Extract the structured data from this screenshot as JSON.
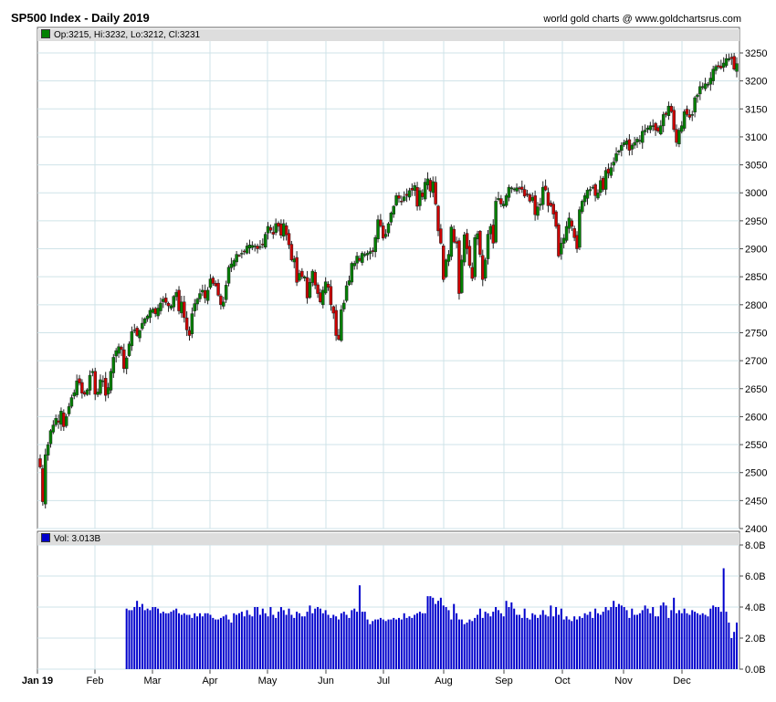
{
  "header": {
    "title": "SP500 Index - Daily 2019",
    "source": "world gold charts @ www.goldchartsrus.com"
  },
  "price_legend": {
    "text": "Op:3215, Hi:3232, Lo:3212, Cl:3231",
    "color": "#008000"
  },
  "volume_legend": {
    "text": "Vol: 3.013B",
    "color": "#0000cc"
  },
  "colors": {
    "up": "#008000",
    "down": "#cc0000",
    "volume": "#0000cc",
    "grid": "#cfe3e8",
    "panel_bg": "#ffffff"
  },
  "chart_data": [
    {
      "type": "candlestick",
      "title": "SP500 Index - Daily 2019",
      "y_ticks": [
        "2400",
        "2450",
        "2500",
        "2550",
        "2600",
        "2650",
        "2700",
        "2750",
        "2800",
        "2850",
        "2900",
        "2950",
        "3000",
        "3050",
        "3100",
        "3150",
        "3200",
        "3250"
      ],
      "ylim": [
        2400,
        3260
      ],
      "x_tick_labels": [
        "Jan 19",
        "Feb",
        "Mar",
        "Apr",
        "May",
        "Jun",
        "Jul",
        "Aug",
        "Sep",
        "Oct",
        "Nov",
        "Dec"
      ],
      "grid": true,
      "closes": [
        2510,
        2448,
        2532,
        2550,
        2575,
        2585,
        2597,
        2590,
        2610,
        2582,
        2600,
        2618,
        2634,
        2643,
        2664,
        2660,
        2642,
        2640,
        2648,
        2674,
        2681,
        2640,
        2644,
        2666,
        2664,
        2638,
        2652,
        2681,
        2706,
        2718,
        2725,
        2720,
        2686,
        2705,
        2730,
        2752,
        2755,
        2745,
        2754,
        2767,
        2775,
        2780,
        2790,
        2792,
        2784,
        2794,
        2803,
        2810,
        2804,
        2798,
        2798,
        2815,
        2822,
        2789,
        2805,
        2777,
        2755,
        2745,
        2784,
        2802,
        2810,
        2820,
        2826,
        2812,
        2826,
        2846,
        2838,
        2834,
        2817,
        2800,
        2805,
        2835,
        2867,
        2873,
        2879,
        2890,
        2888,
        2892,
        2895,
        2905,
        2907,
        2906,
        2905,
        2900,
        2904,
        2907,
        2926,
        2940,
        2933,
        2926,
        2945,
        2940,
        2924,
        2945,
        2925,
        2907,
        2880,
        2882,
        2840,
        2856,
        2850,
        2850,
        2812,
        2840,
        2860,
        2835,
        2820,
        2805,
        2826,
        2841,
        2831,
        2800,
        2785,
        2745,
        2738,
        2791,
        2803,
        2834,
        2843,
        2874,
        2874,
        2887,
        2879,
        2892,
        2890,
        2892,
        2895,
        2895,
        2920,
        2952,
        2941,
        2919,
        2926,
        2945,
        2964,
        2976,
        2995,
        2990,
        2984,
        2993,
        2995,
        3004,
        3005,
        3013,
        2976,
        3004,
        2993,
        3019,
        3025,
        3003,
        3020,
        2980,
        2932,
        2910,
        2845,
        2880,
        2890,
        2939,
        2912,
        2910,
        2820,
        2880,
        2925,
        2900,
        2870,
        2847,
        2920,
        2927,
        2890,
        2845,
        2880,
        2926,
        2940,
        2910,
        2985,
        2990,
        2980,
        2980,
        2995,
        3010,
        3009,
        3007,
        3009,
        3007,
        3006,
        2994,
        2997,
        2985,
        2992,
        2961,
        2975,
        2980,
        3010,
        3005,
        2977,
        2977,
        2962,
        2940,
        2887,
        2910,
        2919,
        2940,
        2955,
        2940,
        2920,
        2900,
        2970,
        2985,
        2995,
        3005,
        3006,
        3010,
        2995,
        3000,
        3022,
        3006,
        3040,
        3035,
        3045,
        3055,
        3070,
        3075,
        3085,
        3090,
        3093,
        3076,
        3085,
        3090,
        3096,
        3094,
        3110,
        3112,
        3116,
        3120,
        3120,
        3112,
        3110,
        3120,
        3140,
        3140,
        3155,
        3145,
        3113,
        3090,
        3112,
        3120,
        3145,
        3140,
        3135,
        3140,
        3170,
        3175,
        3190,
        3190,
        3195,
        3194,
        3205,
        3221,
        3226,
        3225,
        3223,
        3232,
        3240,
        3240,
        3240,
        3221,
        3231
      ],
      "volume_unit": "B",
      "volume_ylim": [
        0,
        8
      ],
      "volume_ticks": [
        "0.0B",
        "2.0B",
        "4.0B",
        "6.0B",
        "8.0B"
      ],
      "volumes_from_Mar": [
        3.9,
        3.8,
        3.8,
        4.0,
        4.4,
        4.0,
        4.2,
        3.8,
        3.9,
        3.8,
        4.0,
        4.0,
        3.9,
        3.6,
        3.7,
        3.6,
        3.6,
        3.7,
        3.8,
        3.9,
        3.6,
        3.5,
        3.6,
        3.5,
        3.5,
        3.3,
        3.6,
        3.4,
        3.6,
        3.4,
        3.6,
        3.6,
        3.5,
        3.3,
        3.2,
        3.2,
        3.3,
        3.4,
        3.5,
        3.2,
        3.0,
        3.6,
        3.5,
        3.6,
        3.7,
        3.4,
        3.8,
        3.5,
        3.4,
        4.0,
        4.0,
        3.5,
        3.9,
        3.6,
        3.4,
        4.0,
        3.5,
        3.3,
        3.7,
        4.0,
        3.8,
        3.5,
        3.9,
        3.5,
        3.3,
        3.7,
        3.6,
        3.4,
        3.4,
        3.7,
        4.1,
        3.6,
        3.9,
        4.0,
        3.9,
        3.6,
        3.8,
        3.5,
        3.3,
        3.5,
        3.4,
        3.2,
        3.6,
        3.7,
        3.5,
        3.3,
        3.8,
        3.9,
        3.7,
        5.4,
        3.7,
        3.7,
        3.2,
        2.9,
        3.1,
        3.2,
        3.2,
        3.3,
        3.2,
        3.1,
        3.2,
        3.2,
        3.3,
        3.2,
        3.3,
        3.2,
        3.6,
        3.3,
        3.4,
        3.3,
        3.5,
        3.6,
        3.7,
        3.6,
        3.6,
        4.7,
        4.7,
        4.6,
        4.2,
        4.4,
        4.6,
        4.1,
        4.0,
        3.8,
        3.2,
        4.2,
        3.6,
        3.2,
        3.2,
        2.9,
        3.0,
        3.2,
        3.1,
        3.3,
        3.5,
        3.9,
        3.3,
        3.7,
        3.6,
        3.4,
        3.7,
        4.0,
        3.8,
        3.6,
        3.4,
        4.4,
        4.0,
        4.3,
        3.9,
        3.5,
        3.5,
        3.3,
        3.9,
        3.3,
        3.2,
        3.6,
        3.5,
        3.3,
        3.5,
        3.8,
        3.5,
        3.4,
        4.1,
        3.4,
        4.0,
        3.5,
        3.9,
        3.2,
        3.4,
        3.2,
        3.1,
        3.4,
        3.2,
        3.4,
        3.3,
        3.6,
        3.5,
        3.7,
        3.3,
        3.9,
        3.6,
        3.5,
        3.7,
        4.0,
        3.8,
        4.0,
        4.4,
        4.0,
        4.2,
        4.1,
        4.0,
        3.8,
        3.3,
        3.9,
        3.5,
        3.5,
        3.6,
        3.8,
        4.1,
        3.9,
        3.6,
        4.0,
        3.4,
        3.4,
        4.1,
        4.3,
        4.1,
        3.3,
        3.8,
        4.6,
        3.6,
        3.8,
        3.6,
        3.9,
        3.6,
        3.5,
        3.8,
        3.7,
        3.6,
        3.5,
        3.6,
        3.5,
        3.4,
        3.9,
        4.1,
        4.0,
        4.0,
        3.7,
        6.5,
        3.7,
        3.0,
        2.0,
        2.4,
        3.0
      ],
      "volume_series_name": "Vol"
    }
  ]
}
